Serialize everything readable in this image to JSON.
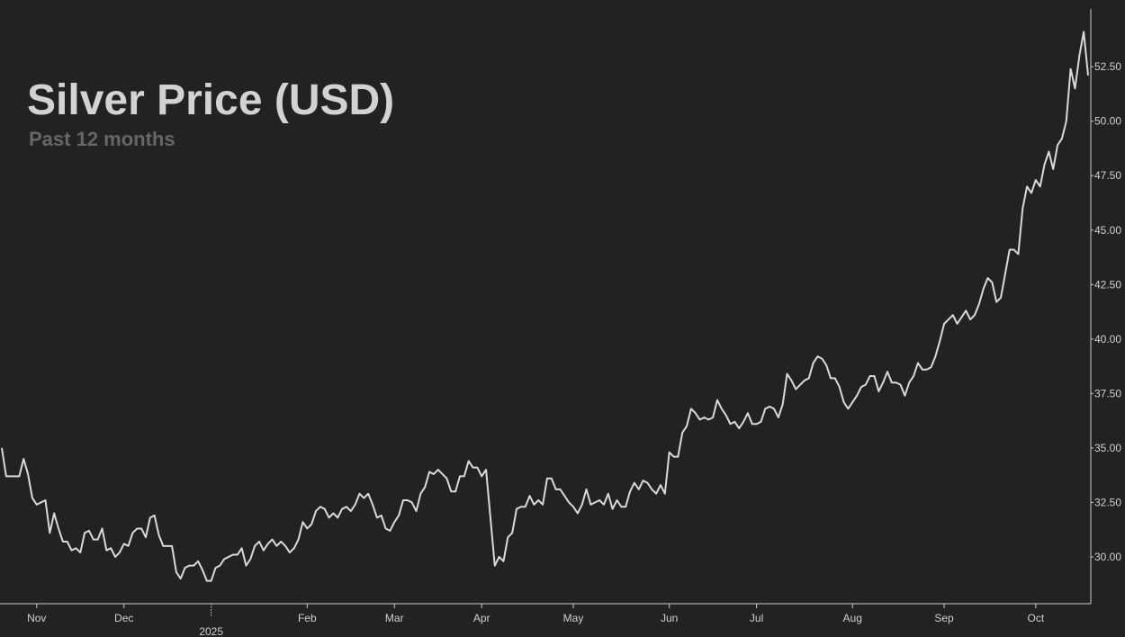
{
  "chart_data": {
    "type": "line",
    "title": "Silver Price (USD)",
    "subtitle": "Past 12 months",
    "color": "#d9d9d9",
    "categories": [
      null,
      null,
      null,
      null,
      null,
      null,
      null,
      null,
      "Nov",
      null,
      null,
      null,
      null,
      null,
      null,
      null,
      null,
      null,
      null,
      null,
      null,
      null,
      null,
      null,
      null,
      null,
      null,
      null,
      "Dec",
      null,
      null,
      null,
      null,
      null,
      null,
      null,
      null,
      null,
      null,
      null,
      null,
      null,
      null,
      null,
      null,
      null,
      null,
      null,
      "2025",
      null,
      null,
      null,
      null,
      null,
      null,
      null,
      null,
      null,
      null,
      null,
      null,
      null,
      null,
      null,
      null,
      null,
      null,
      null,
      null,
      null,
      "Feb",
      null,
      null,
      null,
      null,
      null,
      null,
      null,
      null,
      null,
      null,
      null,
      null,
      null,
      null,
      null,
      null,
      null,
      null,
      null,
      "Mar",
      null,
      null,
      null,
      null,
      null,
      null,
      null,
      null,
      null,
      null,
      null,
      null,
      null,
      null,
      null,
      null,
      null,
      null,
      null,
      "Apr",
      null,
      null,
      null,
      null,
      null,
      null,
      null,
      null,
      null,
      null,
      null,
      null,
      null,
      null,
      null,
      null,
      null,
      null,
      null,
      null,
      "May",
      null,
      null,
      null,
      null,
      null,
      null,
      null,
      null,
      null,
      null,
      null,
      null,
      null,
      null,
      null,
      null,
      null,
      null,
      null,
      null,
      null,
      "Jun",
      null,
      null,
      null,
      null,
      null,
      null,
      null,
      null,
      null,
      null,
      null,
      null,
      null,
      null,
      null,
      null,
      null,
      null,
      null,
      "Jul",
      null,
      null,
      null,
      null,
      null,
      null,
      null,
      null,
      null,
      null,
      null,
      null,
      null,
      null,
      null,
      null,
      null,
      null,
      null,
      null,
      null,
      "Aug",
      null,
      null,
      null,
      null,
      null,
      null,
      null,
      null,
      null,
      null,
      null,
      null,
      null,
      null,
      null,
      null,
      null,
      null,
      null,
      null,
      "Sep",
      null,
      null,
      null,
      null,
      null,
      null,
      null,
      null,
      null,
      null,
      null,
      null,
      null,
      null,
      null,
      null,
      null,
      null,
      null,
      null,
      "Oct",
      null,
      null,
      null,
      null,
      null,
      null,
      null,
      null,
      null,
      null,
      null,
      null
    ],
    "values": [
      35.0,
      33.7,
      33.7,
      33.7,
      33.7,
      34.5,
      33.8,
      32.7,
      32.4,
      32.5,
      32.6,
      31.1,
      32.0,
      31.3,
      30.7,
      30.7,
      30.3,
      30.4,
      30.2,
      31.1,
      31.2,
      30.8,
      30.8,
      31.3,
      30.3,
      30.4,
      30.0,
      30.2,
      30.6,
      30.5,
      31.1,
      31.3,
      31.3,
      30.9,
      31.8,
      31.9,
      31.0,
      30.5,
      30.5,
      30.5,
      29.3,
      29.0,
      29.5,
      29.6,
      29.6,
      29.8,
      29.4,
      28.9,
      28.9,
      29.5,
      29.6,
      29.9,
      30.0,
      30.1,
      30.1,
      30.4,
      29.6,
      29.9,
      30.5,
      30.7,
      30.3,
      30.6,
      30.8,
      30.5,
      30.7,
      30.5,
      30.2,
      30.4,
      30.8,
      31.6,
      31.3,
      31.5,
      32.1,
      32.3,
      32.2,
      31.8,
      32.0,
      31.8,
      32.2,
      32.3,
      32.1,
      32.4,
      32.9,
      32.7,
      32.9,
      32.4,
      31.8,
      31.9,
      31.3,
      31.2,
      31.6,
      31.9,
      32.6,
      32.6,
      32.5,
      32.1,
      32.9,
      33.2,
      33.9,
      33.8,
      34.0,
      33.8,
      33.6,
      33.0,
      33.0,
      33.7,
      33.7,
      34.4,
      34.1,
      34.1,
      33.7,
      34.0,
      31.8,
      29.6,
      30.0,
      29.8,
      30.9,
      31.1,
      32.2,
      32.3,
      32.3,
      32.8,
      32.4,
      32.6,
      32.4,
      33.6,
      33.6,
      33.1,
      33.1,
      32.8,
      32.5,
      32.3,
      32.0,
      32.4,
      33.1,
      32.4,
      32.5,
      32.6,
      32.4,
      32.9,
      32.2,
      32.6,
      32.3,
      32.3,
      33.0,
      33.4,
      33.1,
      33.5,
      33.4,
      33.1,
      32.9,
      33.3,
      32.9,
      34.8,
      34.6,
      34.6,
      35.7,
      36.0,
      36.8,
      36.6,
      36.3,
      36.4,
      36.3,
      36.4,
      37.2,
      36.8,
      36.5,
      36.1,
      36.2,
      35.9,
      36.2,
      36.6,
      36.1,
      36.1,
      36.2,
      36.8,
      36.9,
      36.8,
      36.4,
      37.0,
      38.4,
      38.1,
      37.7,
      37.9,
      38.1,
      38.2,
      38.9,
      39.2,
      39.1,
      38.8,
      38.2,
      38.2,
      37.8,
      37.1,
      36.8,
      37.1,
      37.4,
      37.8,
      37.9,
      38.3,
      38.3,
      37.6,
      38.0,
      38.5,
      38.0,
      38.0,
      37.9,
      37.4,
      38.0,
      38.3,
      38.9,
      38.6,
      38.6,
      38.7,
      39.2,
      39.9,
      40.7,
      40.9,
      41.1,
      40.7,
      41.0,
      41.3,
      40.9,
      41.1,
      41.6,
      42.3,
      42.8,
      42.6,
      41.7,
      41.9,
      43.0,
      44.1,
      44.1,
      43.9,
      46.0,
      47.0,
      46.7,
      47.3,
      47.0,
      48.0,
      48.6,
      47.8,
      48.9,
      49.2,
      50.0,
      52.4,
      51.5,
      53.0,
      54.1,
      52.1
    ],
    "ylim": [
      27.85,
      55.15
    ],
    "yticks": [
      {
        "value": 30,
        "label": "30.00"
      },
      {
        "value": 32.5,
        "label": "32.50"
      },
      {
        "value": 35,
        "label": "35.00"
      },
      {
        "value": 37.5,
        "label": "37.50"
      },
      {
        "value": 40,
        "label": "40.00"
      },
      {
        "value": 42.5,
        "label": "42.50"
      },
      {
        "value": 45,
        "label": "45.00"
      },
      {
        "value": 47.5,
        "label": "47.50"
      },
      {
        "value": 50,
        "label": "50.00"
      },
      {
        "value": 52.5,
        "label": "52.50"
      }
    ],
    "grid": false
  }
}
